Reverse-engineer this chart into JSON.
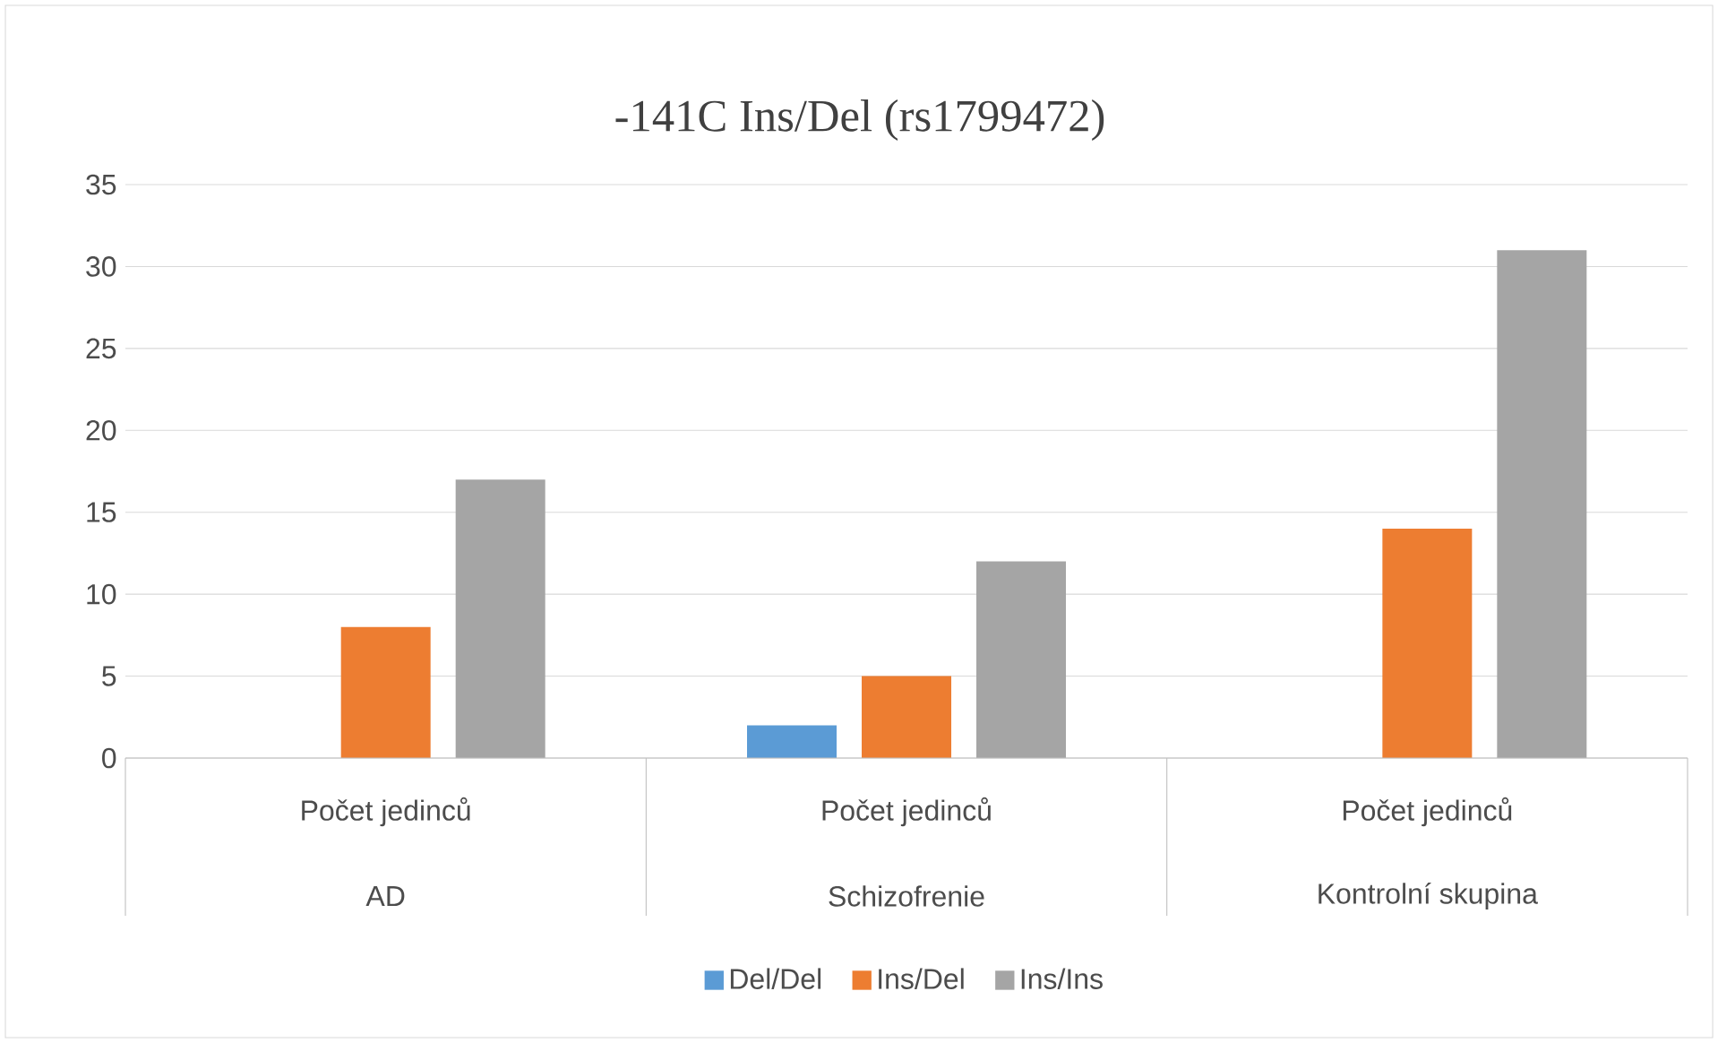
{
  "chart_data": {
    "type": "bar",
    "title": "-141C Ins/Del (rs1799472)",
    "categories": [
      "AD",
      "Schizofrenie",
      "Kontrolní skupina"
    ],
    "series": [
      {
        "name": "Del/Del",
        "color": "#5b9bd5",
        "values": [
          0,
          2,
          0
        ]
      },
      {
        "name": "Ins/Del",
        "color": "#ed7d31",
        "values": [
          8,
          5,
          14
        ]
      },
      {
        "name": "Ins/Ins",
        "color": "#a5a5a5",
        "values": [
          17,
          12,
          31
        ]
      }
    ],
    "annotations": [
      "Počet jedinců",
      "Počet jedinců",
      "Počet jedinců"
    ],
    "ylim": [
      0,
      35
    ],
    "yticks": [
      0,
      5,
      10,
      15,
      20,
      25,
      30,
      35
    ],
    "grid": "y",
    "legend": "bottom"
  }
}
